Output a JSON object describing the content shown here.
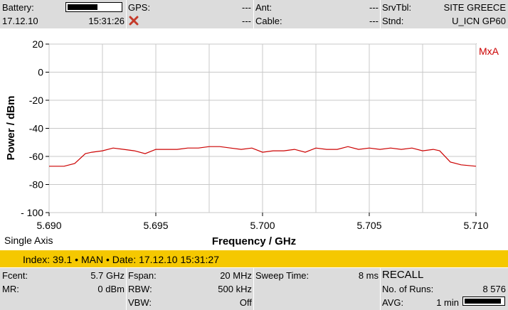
{
  "header": {
    "battery_label": "Battery:",
    "battery_level": 0.55,
    "date": "17.12.10",
    "time": "15:31:26",
    "gps_label": "GPS:",
    "gps_value": "---",
    "gps_status_icon": "error-x-icon",
    "ant_label": "Ant:",
    "ant_value": "---",
    "cable_label": "Cable:",
    "cable_value": "---",
    "srvtbl_label": "SrvTbl:",
    "srvtbl_value": "SITE GREECE",
    "stnd_label": "Stnd:",
    "stnd_value": "U_ICN GP60"
  },
  "chart_data": {
    "type": "line",
    "xlabel": "Frequency / GHz",
    "ylabel": "Power / dBm",
    "xlim": [
      5.69,
      5.71
    ],
    "ylim": [
      -100,
      20
    ],
    "x_ticks": [
      "5.690",
      "5.695",
      "5.700",
      "5.705",
      "5.710"
    ],
    "y_ticks": [
      "20",
      "0",
      "-20",
      "-40",
      "-60",
      "-80",
      "- 100"
    ],
    "grid": true,
    "trace_label": "MxA",
    "trace_color": "#cc0000",
    "series": [
      {
        "x": [
          5.69,
          5.6907,
          5.6912,
          5.6917,
          5.692,
          5.6925,
          5.693,
          5.6935,
          5.694,
          5.6945,
          5.695,
          5.6955,
          5.696,
          5.6965,
          5.697,
          5.6975,
          5.698,
          5.6985,
          5.699,
          5.6995,
          5.7,
          5.7005,
          5.701,
          5.7015,
          5.702,
          5.7025,
          5.703,
          5.7035,
          5.704,
          5.7045,
          5.705,
          5.7055,
          5.706,
          5.7065,
          5.707,
          5.7075,
          5.708,
          5.7083,
          5.7088,
          5.7093,
          5.71
        ],
        "y": [
          -67,
          -67,
          -65,
          -58,
          -57,
          -56,
          -54,
          -55,
          -56,
          -58,
          -55,
          -55,
          -55,
          -54,
          -54,
          -53,
          -53,
          -54,
          -55,
          -54,
          -57,
          -56,
          -56,
          -55,
          -57,
          -54,
          -55,
          -55,
          -53,
          -55,
          -54,
          -55,
          -54,
          -55,
          -54,
          -56,
          -55,
          -56,
          -64,
          -66,
          -67
        ]
      }
    ]
  },
  "chart_footer": {
    "axis_mode": "Single Axis"
  },
  "status": {
    "text": "Index: 39.1 • MAN • Date: 17.12.10 15:31:27"
  },
  "params": {
    "fcent_label": "Fcent:",
    "fcent_value": "5.7 GHz",
    "mr_label": "MR:",
    "mr_value": "0 dBm",
    "fspan_label": "Fspan:",
    "fspan_value": "20 MHz",
    "rbw_label": "RBW:",
    "rbw_value": "500 kHz",
    "vbw_label": "VBW:",
    "vbw_value": "Off",
    "sweep_label": "Sweep Time:",
    "sweep_value": "8 ms",
    "mode_title": "RECALL",
    "runs_label": "No. of Runs:",
    "runs_value": "8 576",
    "avg_label": "AVG:",
    "avg_value": "1 min",
    "avg_level": 0.95
  }
}
